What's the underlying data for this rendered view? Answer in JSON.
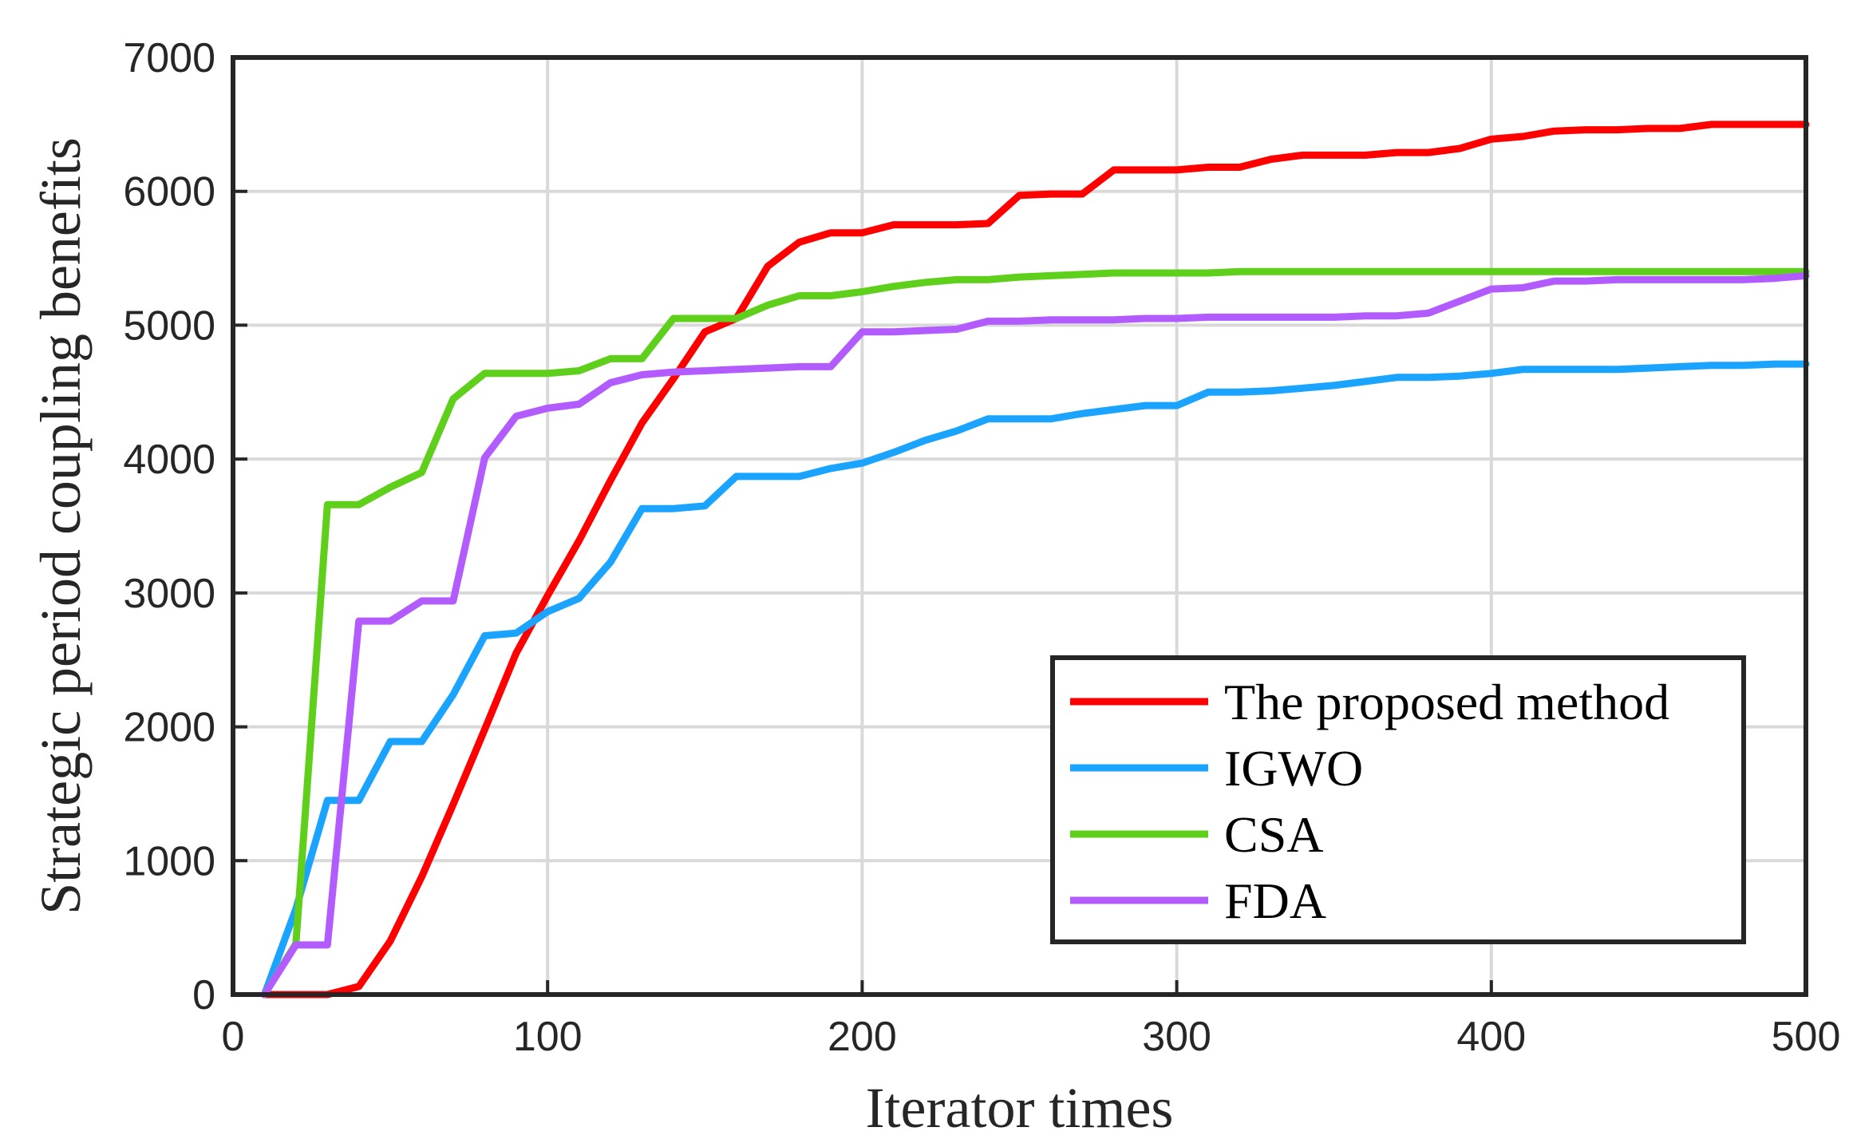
{
  "chart_data": {
    "type": "line",
    "title": "",
    "xlabel": "Iterator times",
    "ylabel": "Strategic period coupling benefits",
    "xlim": [
      0,
      500
    ],
    "ylim": [
      0,
      7000
    ],
    "xticks": [
      "0",
      "100",
      "200",
      "300",
      "400",
      "500"
    ],
    "yticks": [
      "0",
      "1000",
      "2000",
      "3000",
      "4000",
      "5000",
      "6000",
      "7000"
    ],
    "grid": true,
    "legend_position": "bottom-right",
    "x": [
      10,
      20,
      30,
      40,
      50,
      60,
      70,
      80,
      90,
      100,
      110,
      120,
      130,
      140,
      150,
      160,
      170,
      180,
      190,
      200,
      210,
      220,
      230,
      240,
      250,
      260,
      270,
      280,
      290,
      300,
      310,
      320,
      330,
      340,
      350,
      360,
      370,
      380,
      390,
      400,
      410,
      420,
      430,
      440,
      450,
      460,
      470,
      480,
      490,
      500
    ],
    "series": [
      {
        "name": "The proposed method",
        "color": "#ff0000",
        "values": [
          0,
          0,
          0,
          60,
          400,
          880,
          1420,
          1980,
          2550,
          2980,
          3390,
          3840,
          4270,
          4600,
          4950,
          5050,
          5440,
          5620,
          5690,
          5690,
          5750,
          5750,
          5750,
          5760,
          5970,
          5980,
          5980,
          6160,
          6160,
          6160,
          6180,
          6180,
          6240,
          6270,
          6270,
          6270,
          6290,
          6290,
          6320,
          6390,
          6410,
          6450,
          6460,
          6460,
          6470,
          6470,
          6500,
          6500,
          6500,
          6500
        ]
      },
      {
        "name": "IGWO",
        "color": "#1aa3ff",
        "values": [
          0,
          640,
          1450,
          1450,
          1890,
          1890,
          2240,
          2680,
          2700,
          2860,
          2960,
          3230,
          3630,
          3630,
          3650,
          3870,
          3870,
          3870,
          3930,
          3970,
          4050,
          4140,
          4210,
          4300,
          4300,
          4300,
          4340,
          4370,
          4400,
          4400,
          4500,
          4500,
          4510,
          4530,
          4550,
          4580,
          4610,
          4610,
          4620,
          4640,
          4670,
          4670,
          4670,
          4670,
          4680,
          4690,
          4700,
          4700,
          4710,
          4710
        ]
      },
      {
        "name": "CSA",
        "color": "#5ecf1a",
        "values": [
          0,
          380,
          3660,
          3660,
          3790,
          3900,
          4450,
          4640,
          4640,
          4640,
          4660,
          4750,
          4750,
          5050,
          5050,
          5050,
          5150,
          5220,
          5220,
          5250,
          5290,
          5320,
          5340,
          5340,
          5360,
          5370,
          5380,
          5390,
          5390,
          5390,
          5390,
          5400,
          5400,
          5400,
          5400,
          5400,
          5400,
          5400,
          5400,
          5400,
          5400,
          5400,
          5400,
          5400,
          5400,
          5400,
          5400,
          5400,
          5400,
          5400
        ]
      },
      {
        "name": "FDA",
        "color": "#b25cff",
        "values": [
          0,
          370,
          370,
          2790,
          2790,
          2940,
          2940,
          4010,
          4320,
          4380,
          4410,
          4570,
          4630,
          4650,
          4660,
          4670,
          4680,
          4690,
          4690,
          4950,
          4950,
          4960,
          4970,
          5030,
          5030,
          5040,
          5040,
          5040,
          5050,
          5050,
          5060,
          5060,
          5060,
          5060,
          5060,
          5070,
          5070,
          5090,
          5180,
          5270,
          5280,
          5330,
          5330,
          5340,
          5340,
          5340,
          5340,
          5340,
          5350,
          5370
        ]
      }
    ]
  }
}
